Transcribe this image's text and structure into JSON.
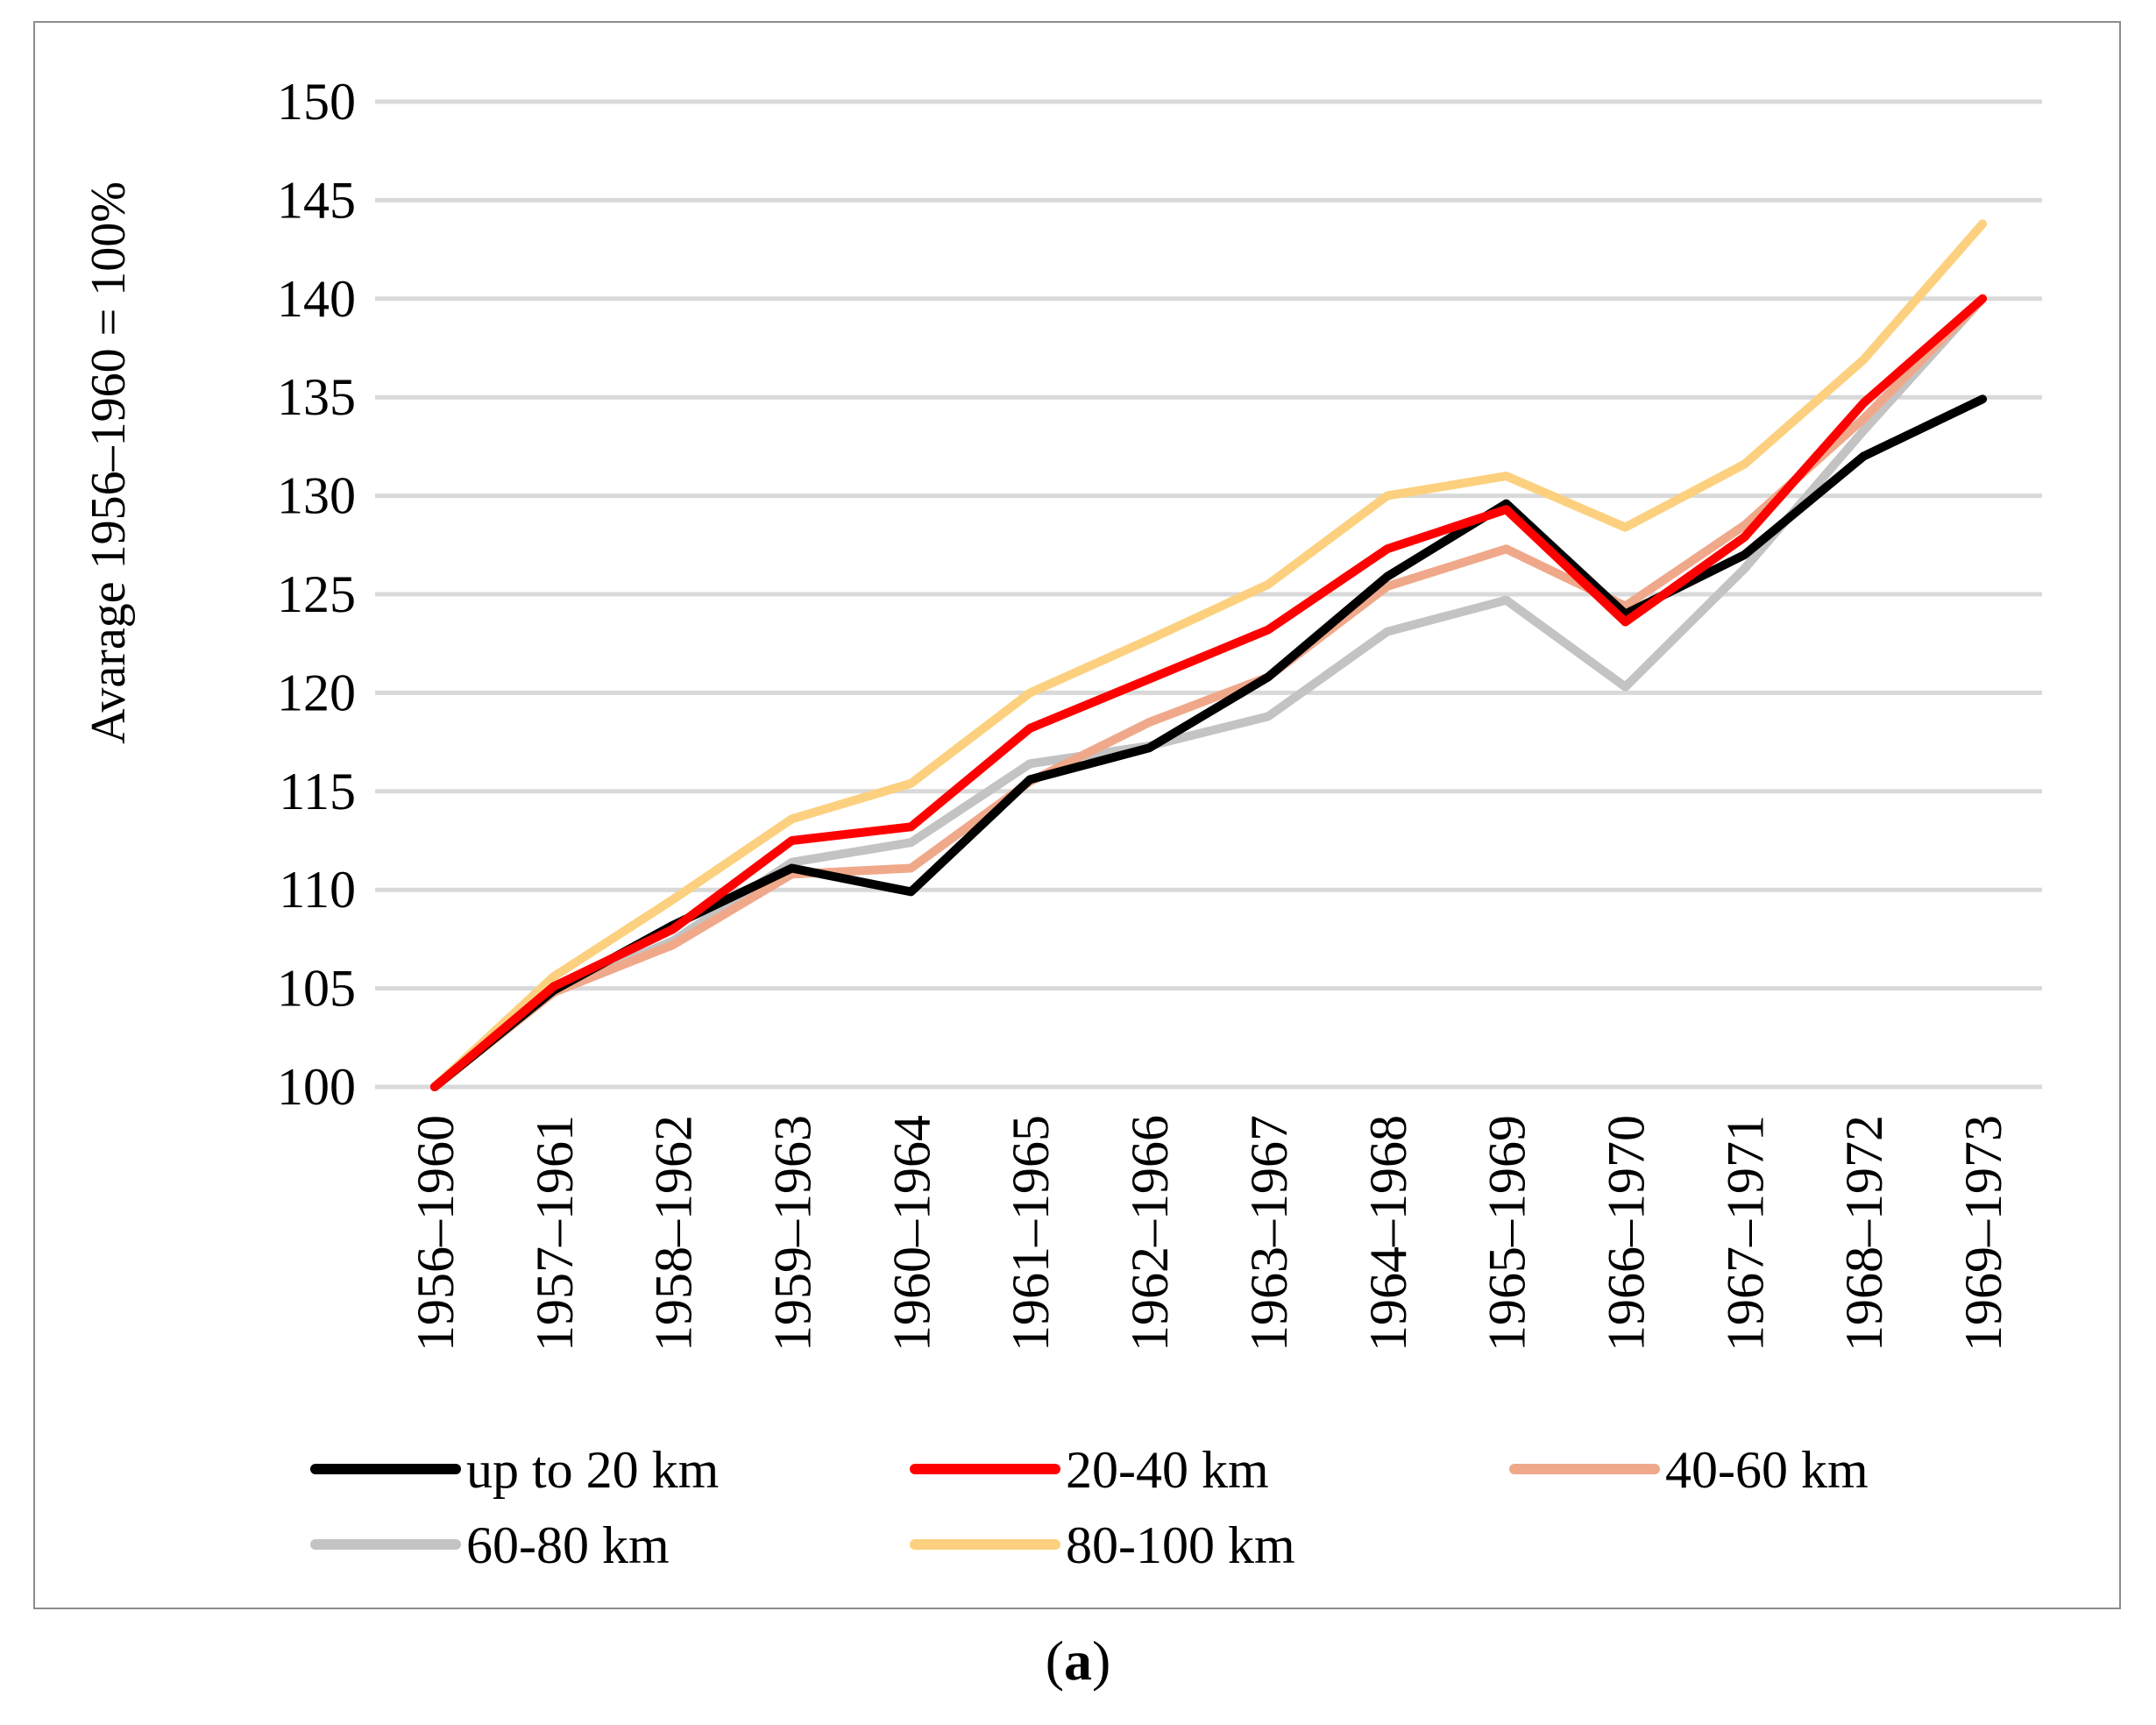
{
  "chart_data": {
    "type": "line",
    "ylabel": "Avarage 1956–1960 = 100%",
    "xlabel": "",
    "ylim": [
      100,
      150
    ],
    "yticks": [
      100,
      105,
      110,
      115,
      120,
      125,
      130,
      135,
      140,
      145,
      150
    ],
    "grid": true,
    "legend_position": "bottom",
    "categories": [
      "1956–1960",
      "1957–1961",
      "1958–1962",
      "1959–1963",
      "1960–1964",
      "1961–1965",
      "1962–1966",
      "1963–1967",
      "1964–1968",
      "1965–1969",
      "1966–1970",
      "1967–1971",
      "1968–1972",
      "1969–1973"
    ],
    "series": [
      {
        "name": "up to 20 km",
        "color": "#000000",
        "values": [
          100,
          104.9,
          108.2,
          111.1,
          109.9,
          115.6,
          117.2,
          120.8,
          125.9,
          129.6,
          124.0,
          127.0,
          132.0,
          134.9
        ]
      },
      {
        "name": "20-40 km",
        "color": "#ff0000",
        "values": [
          100,
          105.1,
          108.0,
          112.5,
          113.2,
          118.2,
          120.7,
          123.2,
          127.3,
          129.3,
          123.6,
          127.9,
          134.7,
          140.0
        ]
      },
      {
        "name": "40-60 km",
        "color": "#f0a88a",
        "values": [
          100,
          104.8,
          107.2,
          110.8,
          111.1,
          115.5,
          118.5,
          120.8,
          125.4,
          127.3,
          124.4,
          128.5,
          133.9,
          140.0
        ]
      },
      {
        "name": "60-80 km",
        "color": "#c3c3c3",
        "values": [
          100,
          104.9,
          107.4,
          111.4,
          112.4,
          116.4,
          117.3,
          118.8,
          123.1,
          124.7,
          120.3,
          126.3,
          133.3,
          140.0
        ]
      },
      {
        "name": "80-100 km",
        "color": "#fcd07e",
        "values": [
          100,
          105.6,
          109.5,
          113.6,
          115.4,
          120.0,
          122.7,
          125.5,
          130.0,
          131.0,
          128.4,
          131.6,
          136.9,
          143.8
        ]
      }
    ]
  },
  "caption": {
    "open": "(",
    "letter": "a",
    "close": ")"
  }
}
